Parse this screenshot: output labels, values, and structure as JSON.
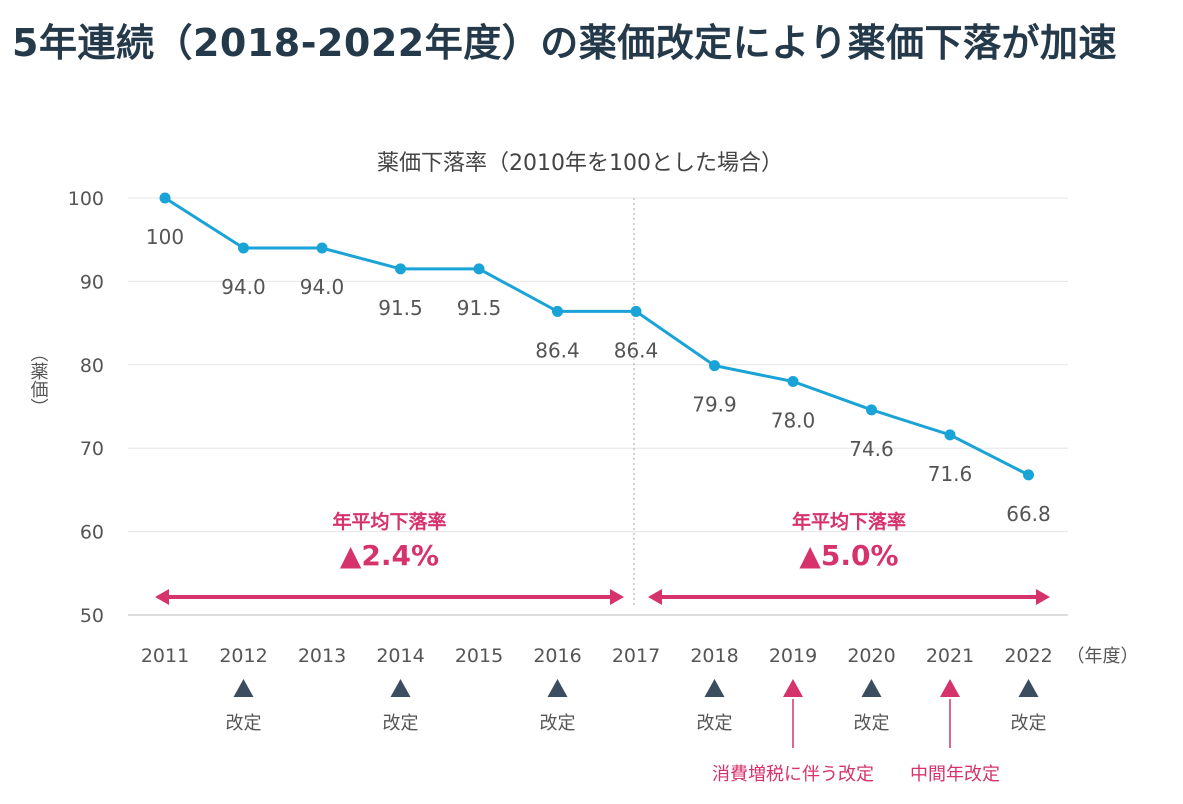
{
  "headline": "5年連続（2018-2022年度）の薬価改定により薬価下落が加速",
  "chart_data": {
    "type": "line",
    "title": "薬価下落率（2010年を100とした場合）",
    "ylabel": "（薬価）",
    "xunit": "（年度）",
    "categories": [
      "2011",
      "2012",
      "2013",
      "2014",
      "2015",
      "2016",
      "2017",
      "2018",
      "2019",
      "2020",
      "2021",
      "2022"
    ],
    "series": [
      {
        "values": [
          100,
          94.0,
          94.0,
          91.5,
          91.5,
          86.4,
          86.4,
          79.9,
          78.0,
          74.6,
          71.6,
          66.8
        ]
      }
    ],
    "data_labels": [
      "100",
      "94.0",
      "94.0",
      "91.5",
      "91.5",
      "86.4",
      "86.4",
      "79.9",
      "78.0",
      "74.6",
      "71.6",
      "66.8"
    ],
    "ylim": [
      50,
      100
    ],
    "yticks": [
      50,
      60,
      70,
      80,
      90,
      100
    ],
    "grid": true,
    "divider_year": "2017",
    "periods": [
      {
        "from": "2011",
        "to": "2017",
        "label": "年平均下落率",
        "value": "▲2.4%"
      },
      {
        "from": "2017",
        "to": "2022",
        "label": "年平均下落率",
        "value": "▲5.0%"
      }
    ],
    "revisions": [
      {
        "year": "2012",
        "kind": "regular",
        "label": "改定"
      },
      {
        "year": "2014",
        "kind": "regular",
        "label": "改定"
      },
      {
        "year": "2016",
        "kind": "regular",
        "label": "改定"
      },
      {
        "year": "2018",
        "kind": "regular",
        "label": "改定"
      },
      {
        "year": "2019",
        "kind": "special",
        "label": "消費増税に伴う改定"
      },
      {
        "year": "2020",
        "kind": "regular",
        "label": "改定"
      },
      {
        "year": "2021",
        "kind": "special",
        "label": "中間年改定"
      },
      {
        "year": "2022",
        "kind": "regular",
        "label": "改定"
      }
    ],
    "colors": {
      "line": "#1aa3d6",
      "accent": "#d6336c",
      "marker": "#3d4d60",
      "text": "#555555",
      "grid": "#e6e6e6"
    }
  }
}
